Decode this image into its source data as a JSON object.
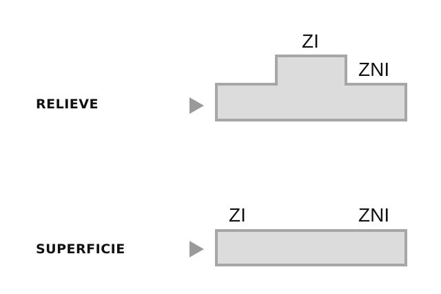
{
  "relieve": {
    "label": "RELIEVE",
    "zi_label": "ZI",
    "zni_label": "ZNI"
  },
  "superficie": {
    "label": "SUPERFICIE",
    "zi_label": "ZI",
    "zni_label": "ZNI"
  },
  "colors": {
    "shape_fill": "#dcdcdc",
    "shape_stroke": "#a6a6a6",
    "arrow": "#9a9a9a",
    "text": "#111111"
  }
}
